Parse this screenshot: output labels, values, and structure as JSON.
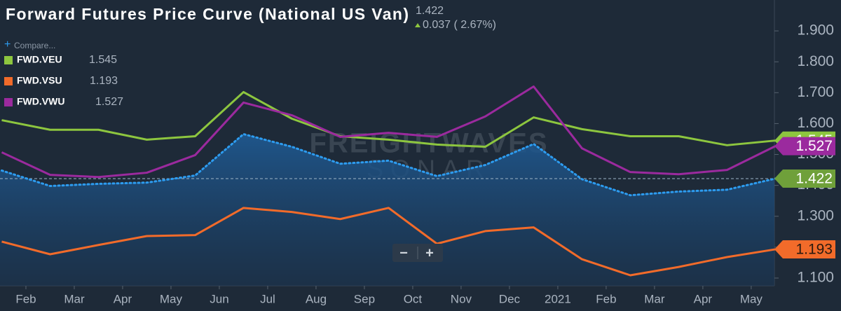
{
  "chart_data": {
    "type": "line",
    "title": "Forward Futures Price Curve (National US Van)",
    "change": "0.037 ( 2.67%)",
    "compare": "Compare...",
    "watermark": [
      "FREIGHTWAVES",
      "SONAR"
    ],
    "zoom_controls": [
      "−",
      "+"
    ],
    "x": [
      -0.5,
      0.5,
      1.5,
      2.5,
      3.5,
      4.5,
      5.5,
      6.5,
      7.5,
      8.5,
      9.5,
      10.5,
      11.5,
      12.5,
      13.5,
      14.5,
      15.5
    ],
    "xlim": [
      -0.536,
      15.48
    ],
    "xticks": [
      {
        "value": 0,
        "label": "Feb"
      },
      {
        "value": 1,
        "label": "Mar"
      },
      {
        "value": 2,
        "label": "Apr"
      },
      {
        "value": 3,
        "label": "May"
      },
      {
        "value": 4,
        "label": "Jun"
      },
      {
        "value": 5,
        "label": "Jul"
      },
      {
        "value": 6,
        "label": "Aug"
      },
      {
        "value": 7,
        "label": "Sep"
      },
      {
        "value": 8,
        "label": "Oct"
      },
      {
        "value": 9,
        "label": "Nov"
      },
      {
        "value": 10,
        "label": "Dec"
      },
      {
        "value": 11,
        "label": "2021"
      },
      {
        "value": 12,
        "label": "Feb"
      },
      {
        "value": 13,
        "label": "Mar"
      },
      {
        "value": 14,
        "label": "Apr"
      },
      {
        "value": 15,
        "label": "May"
      }
    ],
    "ylim": [
      1.075,
      2.0
    ],
    "yticks": [
      {
        "value": 1.1,
        "label": "1.100"
      },
      {
        "value": 1.2,
        "label": "1.200"
      },
      {
        "value": 1.3,
        "label": "1.300"
      },
      {
        "value": 1.4,
        "label": "1.400"
      },
      {
        "value": 1.5,
        "label": "1.500"
      },
      {
        "value": 1.6,
        "label": "1.600"
      },
      {
        "value": 1.7,
        "label": "1.700"
      },
      {
        "value": 1.8,
        "label": "1.800"
      },
      {
        "value": 1.9,
        "label": "1.900"
      }
    ],
    "series": [
      {
        "name": "FWD.VEU",
        "color": "#8dc63f",
        "values": [
          1.611,
          1.58,
          1.58,
          1.548,
          1.559,
          1.702,
          1.616,
          1.559,
          1.548,
          1.532,
          1.525,
          1.62,
          1.582,
          1.559,
          1.559,
          1.53,
          1.545
        ]
      },
      {
        "name": "FWD.VSU",
        "color": "#f26b2a",
        "values": [
          1.218,
          1.177,
          1.207,
          1.236,
          1.239,
          1.327,
          1.314,
          1.291,
          1.327,
          1.211,
          1.252,
          1.264,
          1.161,
          1.109,
          1.136,
          1.168,
          1.193
        ]
      },
      {
        "name": "FWD.VWU",
        "color": "#9b2a9e",
        "values": [
          1.507,
          1.434,
          1.427,
          1.441,
          1.498,
          1.668,
          1.627,
          1.557,
          1.57,
          1.557,
          1.623,
          1.72,
          1.52,
          1.443,
          1.436,
          1.45,
          1.527
        ]
      },
      {
        "color": "#2d9cf0",
        "values": [
          1.448,
          1.398,
          1.405,
          1.409,
          1.432,
          1.566,
          1.525,
          1.47,
          1.48,
          1.43,
          1.466,
          1.534,
          1.42,
          1.368,
          1.38,
          1.386,
          1.422
        ]
      }
    ]
  }
}
